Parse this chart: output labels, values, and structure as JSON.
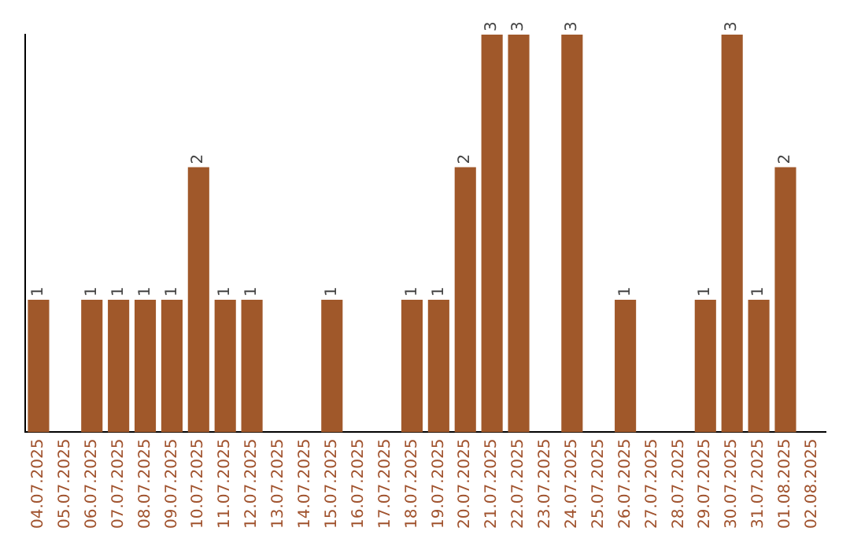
{
  "chart_data": {
    "type": "bar",
    "categories": [
      "04.07.2025",
      "05.07.2025",
      "06.07.2025",
      "07.07.2025",
      "08.07.2025",
      "09.07.2025",
      "10.07.2025",
      "11.07.2025",
      "12.07.2025",
      "13.07.2025",
      "14.07.2025",
      "15.07.2025",
      "16.07.2025",
      "17.07.2025",
      "18.07.2025",
      "19.07.2025",
      "20.07.2025",
      "21.07.2025",
      "22.07.2025",
      "23.07.2025",
      "24.07.2025",
      "25.07.2025",
      "26.07.2025",
      "27.07.2025",
      "28.07.2025",
      "29.07.2025",
      "30.07.2025",
      "31.07.2025",
      "01.08.2025",
      "02.08.2025"
    ],
    "values": [
      1,
      null,
      1,
      1,
      1,
      1,
      2,
      1,
      1,
      null,
      null,
      1,
      null,
      null,
      1,
      1,
      2,
      3,
      3,
      null,
      3,
      null,
      1,
      null,
      null,
      1,
      3,
      1,
      2,
      null
    ],
    "color": "#a0582a",
    "ylim": [
      0,
      3
    ],
    "data_labels": true,
    "grid": false,
    "legend": false,
    "tick_labels": "x"
  }
}
